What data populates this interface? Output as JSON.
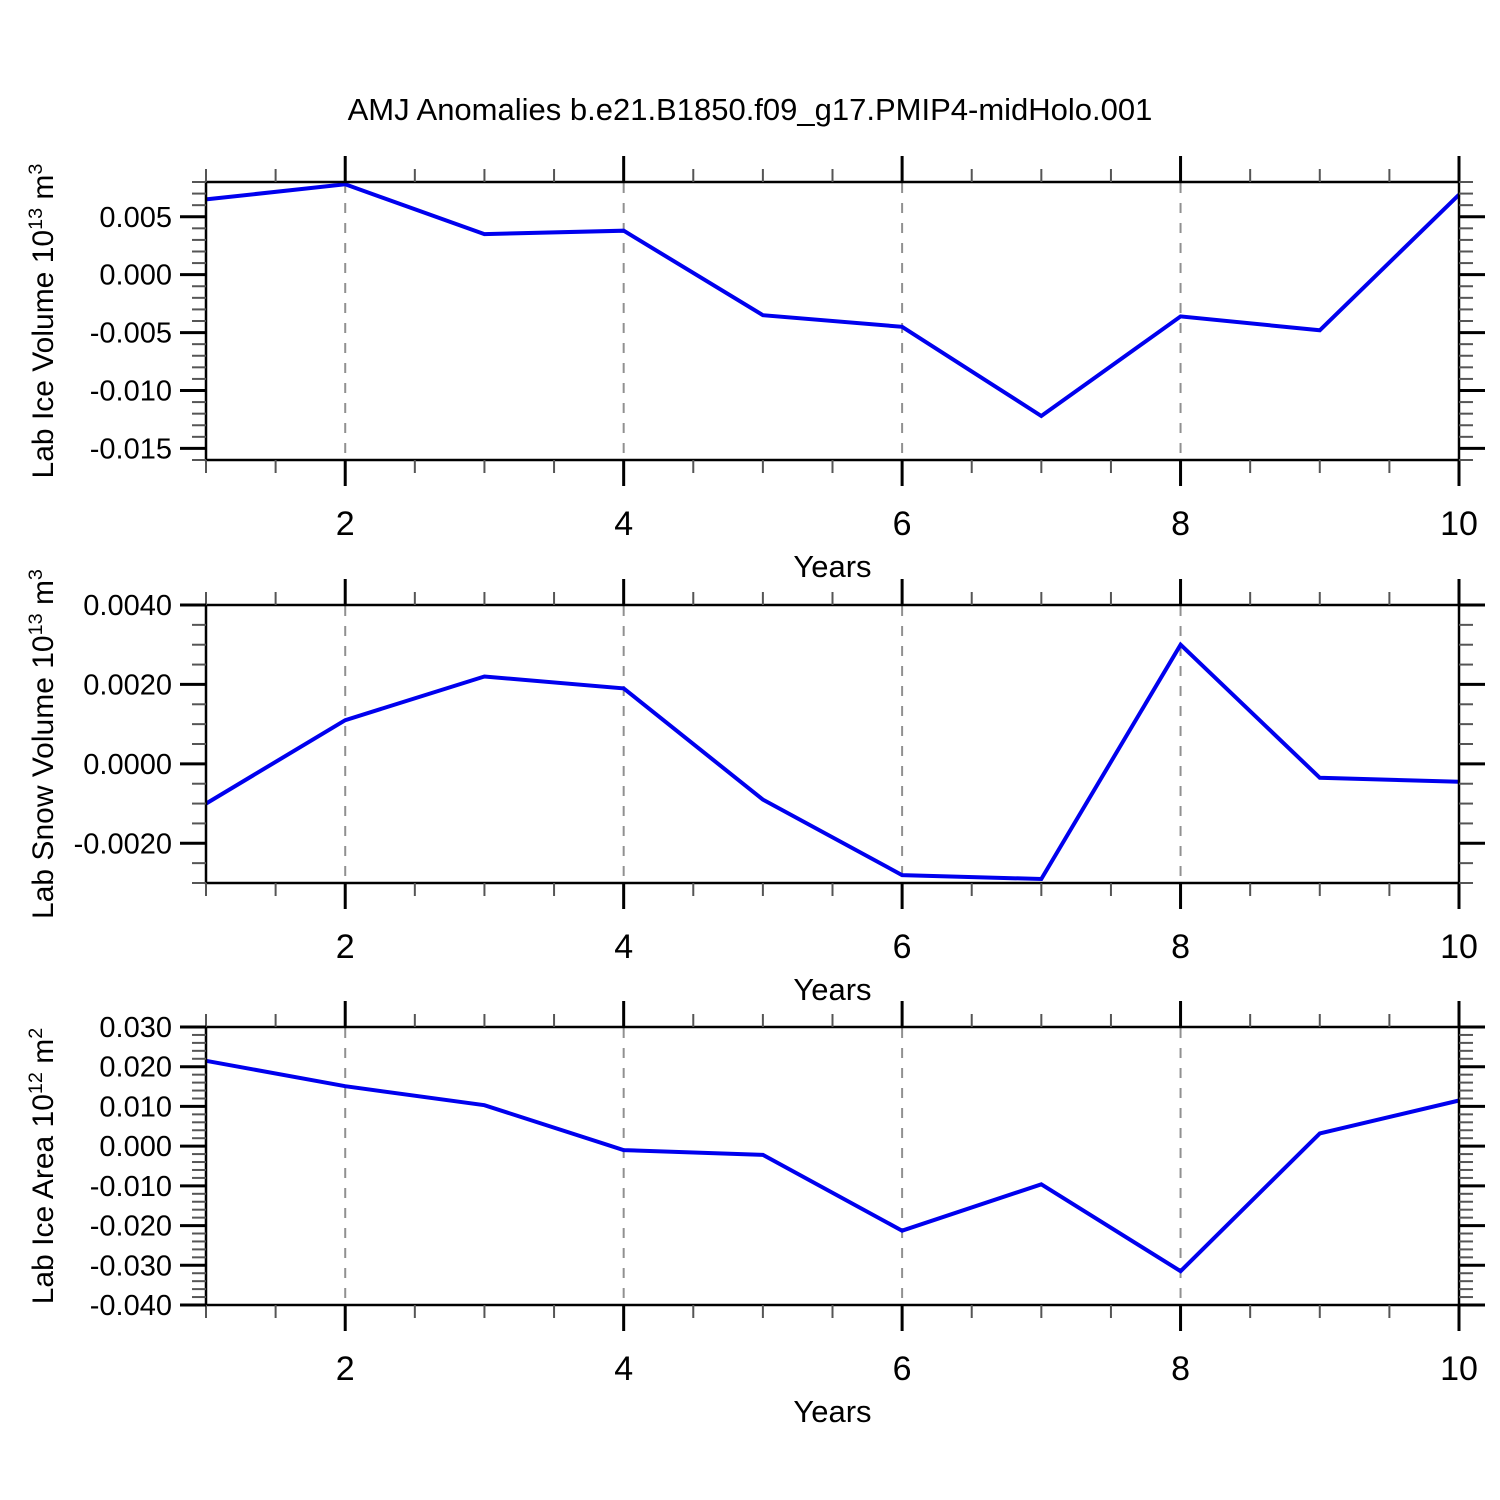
{
  "title": "AMJ Anomalies b.e21.B1850.f09_g17.PMIP4-midHolo.001",
  "colors": {
    "line": "#0000ee",
    "grid": "#909090",
    "axis": "#000000",
    "minor_tick": "#555555"
  },
  "chart_data": [
    {
      "type": "line",
      "ylabel": {
        "base": "Lab Ice Volume 10",
        "exp": "13",
        "unit": " m",
        "unit_exp": "3"
      },
      "ylabel_text": "Lab Ice Volume 10^13 m^3",
      "xlabel": "Years",
      "x": [
        1,
        2,
        3,
        4,
        5,
        6,
        7,
        8,
        9,
        10
      ],
      "values": [
        0.0065,
        0.0078,
        0.0035,
        0.0038,
        -0.0035,
        -0.0045,
        -0.0122,
        -0.0036,
        -0.0048,
        0.0069
      ],
      "xlim": [
        1,
        10
      ],
      "ylim": [
        -0.016,
        0.008
      ],
      "yticks": [
        {
          "v": 0.005,
          "label": "0.005"
        },
        {
          "v": 0.0,
          "label": "0.000"
        },
        {
          "v": -0.005,
          "label": "-0.005"
        },
        {
          "v": -0.01,
          "label": "-0.010"
        },
        {
          "v": -0.015,
          "label": "-0.015"
        }
      ],
      "y_minor_step": 0.001,
      "xticks": [
        {
          "v": 2,
          "label": "2"
        },
        {
          "v": 4,
          "label": "4"
        },
        {
          "v": 6,
          "label": "6"
        },
        {
          "v": 8,
          "label": "8"
        },
        {
          "v": 10,
          "label": "10"
        }
      ],
      "x_minor_step": 0.5,
      "x_gridlines": [
        2,
        4,
        6,
        8
      ],
      "grid_on": true,
      "legend": "none"
    },
    {
      "type": "line",
      "ylabel": {
        "base": "Lab Snow Volume 10",
        "exp": "13",
        "unit": " m",
        "unit_exp": "3"
      },
      "ylabel_text": "Lab Snow Volume 10^13 m^3",
      "xlabel": "Years",
      "x": [
        1,
        2,
        3,
        4,
        5,
        6,
        7,
        8,
        9,
        10
      ],
      "values": [
        -0.001,
        0.0011,
        0.0022,
        0.0019,
        -0.0009,
        -0.0028,
        -0.0029,
        0.003,
        -0.00035,
        -0.00045
      ],
      "xlim": [
        1,
        10
      ],
      "ylim": [
        -0.003,
        0.004
      ],
      "yticks": [
        {
          "v": 0.004,
          "label": "0.0040"
        },
        {
          "v": 0.002,
          "label": "0.0020"
        },
        {
          "v": 0.0,
          "label": "0.0000"
        },
        {
          "v": -0.002,
          "label": "-0.0020"
        }
      ],
      "y_minor_step": 0.0005,
      "xticks": [
        {
          "v": 2,
          "label": "2"
        },
        {
          "v": 4,
          "label": "4"
        },
        {
          "v": 6,
          "label": "6"
        },
        {
          "v": 8,
          "label": "8"
        },
        {
          "v": 10,
          "label": "10"
        }
      ],
      "x_minor_step": 0.5,
      "x_gridlines": [
        2,
        4,
        6,
        8
      ],
      "grid_on": true,
      "legend": "none"
    },
    {
      "type": "line",
      "ylabel": {
        "base": "Lab Ice Area 10",
        "exp": "12",
        "unit": " m",
        "unit_exp": "2"
      },
      "ylabel_text": "Lab Ice Area 10^12 m^2",
      "xlabel": "Years",
      "x": [
        1,
        2,
        3,
        4,
        5,
        6,
        7,
        8,
        9,
        10
      ],
      "values": [
        0.0215,
        0.0151,
        0.0103,
        -0.001,
        -0.0022,
        -0.0213,
        -0.0096,
        -0.0315,
        0.0032,
        0.0115
      ],
      "xlim": [
        1,
        10
      ],
      "ylim": [
        -0.04,
        0.03
      ],
      "yticks": [
        {
          "v": 0.03,
          "label": "0.030"
        },
        {
          "v": 0.02,
          "label": "0.020"
        },
        {
          "v": 0.01,
          "label": "0.010"
        },
        {
          "v": 0.0,
          "label": "0.000"
        },
        {
          "v": -0.01,
          "label": "-0.010"
        },
        {
          "v": -0.02,
          "label": "-0.020"
        },
        {
          "v": -0.03,
          "label": "-0.030"
        },
        {
          "v": -0.04,
          "label": "-0.040"
        }
      ],
      "y_minor_step": 0.002,
      "xticks": [
        {
          "v": 2,
          "label": "2"
        },
        {
          "v": 4,
          "label": "4"
        },
        {
          "v": 6,
          "label": "6"
        },
        {
          "v": 8,
          "label": "8"
        },
        {
          "v": 10,
          "label": "10"
        }
      ],
      "x_minor_step": 0.5,
      "x_gridlines": [
        2,
        4,
        6,
        8
      ],
      "grid_on": true,
      "legend": "none"
    }
  ]
}
